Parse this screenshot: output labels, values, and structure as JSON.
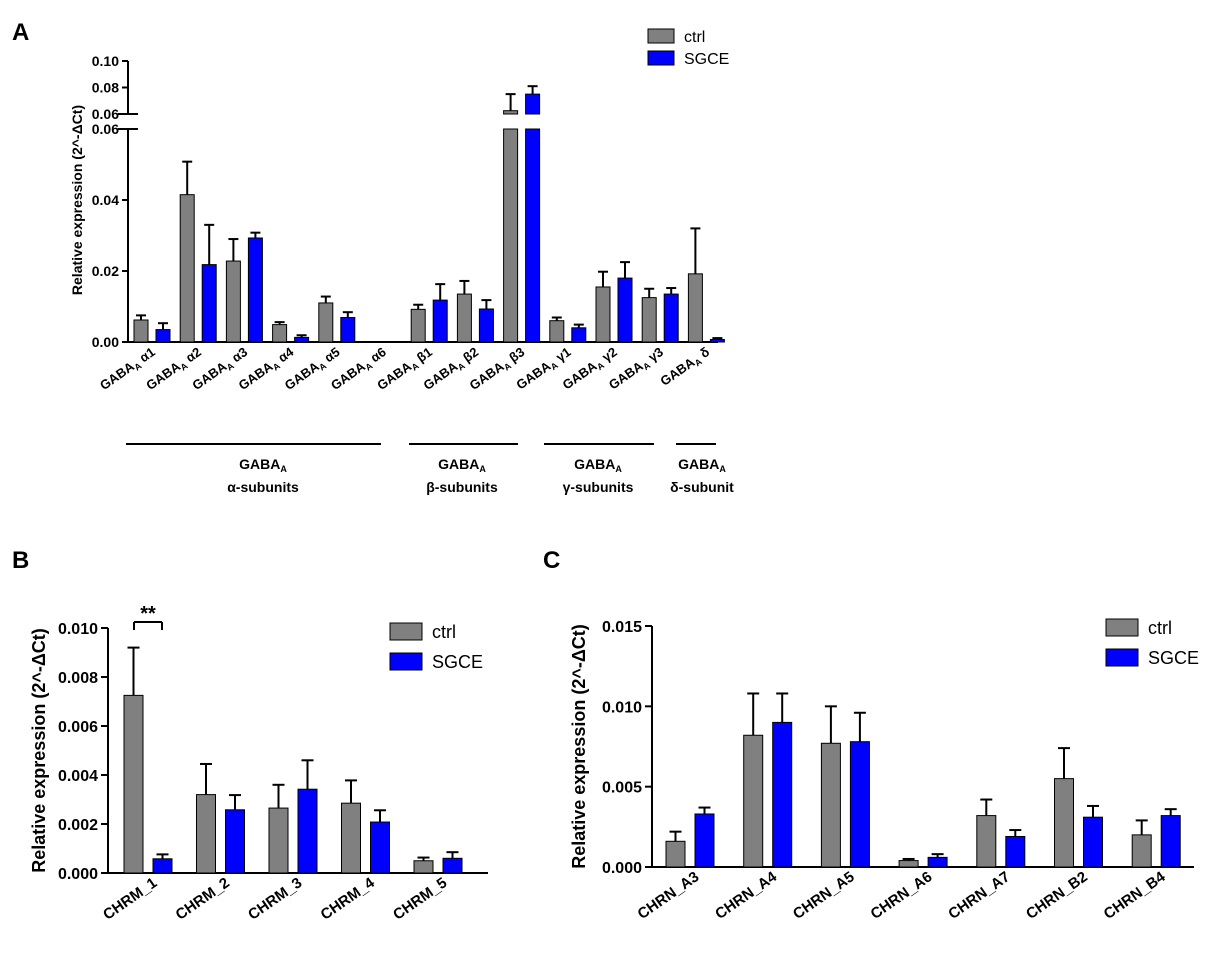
{
  "colors": {
    "ctrl": "#808080",
    "SGCE": "#0000ff"
  },
  "chart_data": [
    {
      "panel": "A",
      "type": "bar",
      "ylabel": "Relative expression (2^-ΔCt)",
      "ylim_lower": [
        0,
        0.06
      ],
      "ylim_upper": [
        0.06,
        0.1
      ],
      "yticks_lower": [
        "0.00",
        "0.02",
        "0.04",
        "0.06"
      ],
      "yticks_upper": [
        "0.06",
        "0.08",
        "0.10"
      ],
      "legend": [
        "ctrl",
        "SGCE"
      ],
      "legend_position": "top-right",
      "categories": [
        {
          "prefix": "GABA",
          "sub": "A",
          "greek": "α1"
        },
        {
          "prefix": "GABA",
          "sub": "A",
          "greek": "α2"
        },
        {
          "prefix": "GABA",
          "sub": "A",
          "greek": "α3"
        },
        {
          "prefix": "GABA",
          "sub": "A",
          "greek": "α4"
        },
        {
          "prefix": "GABA",
          "sub": "A",
          "greek": "α5"
        },
        {
          "prefix": "GABA",
          "sub": "A",
          "greek": "α6"
        },
        {
          "prefix": "GABA",
          "sub": "A",
          "greek": "β1"
        },
        {
          "prefix": "GABA",
          "sub": "A",
          "greek": "β2"
        },
        {
          "prefix": "GABA",
          "sub": "A",
          "greek": "β3"
        },
        {
          "prefix": "GABA",
          "sub": "A",
          "greek": "γ1"
        },
        {
          "prefix": "GABA",
          "sub": "A",
          "greek": "γ2"
        },
        {
          "prefix": "GABA",
          "sub": "A",
          "greek": "γ3"
        },
        {
          "prefix": "GABA",
          "sub": "A",
          "greek": "δ"
        }
      ],
      "series": [
        {
          "name": "ctrl",
          "values": [
            0.0062,
            0.0415,
            0.0228,
            0.0049,
            0.011,
            0,
            0.0092,
            0.0135,
            0.0625,
            0.006,
            0.0155,
            0.0125,
            0.0192
          ],
          "errors": [
            0.0013,
            0.0093,
            0.0062,
            0.0007,
            0.0018,
            0,
            0.0013,
            0.0037,
            0.0125,
            0.0009,
            0.0043,
            0.0025,
            0.0128
          ]
        },
        {
          "name": "SGCE",
          "values": [
            0.0035,
            0.0218,
            0.0293,
            0.0013,
            0.0069,
            0,
            0.0118,
            0.0093,
            0.075,
            0.004,
            0.018,
            0.0135,
            0.0007
          ],
          "errors": [
            0.0018,
            0.0112,
            0.0015,
            0.0006,
            0.0015,
            0,
            0.0045,
            0.0025,
            0.006,
            0.0009,
            0.0045,
            0.0017,
            0.0004
          ]
        }
      ],
      "groups": [
        {
          "prefix": "GABA",
          "sub": "A",
          "label": "α-subunits"
        },
        {
          "prefix": "GABA",
          "sub": "A",
          "label": "β-subunits"
        },
        {
          "prefix": "GABA",
          "sub": "A",
          "label": "γ-subunits"
        },
        {
          "prefix": "GABA",
          "sub": "A",
          "label": "δ-subunit"
        }
      ]
    },
    {
      "panel": "B",
      "type": "bar",
      "ylabel": "Relative expression (2^-ΔCt)",
      "ylim": [
        0,
        0.01
      ],
      "yticks": [
        "0.000",
        "0.002",
        "0.004",
        "0.006",
        "0.008",
        "0.010"
      ],
      "legend": [
        "ctrl",
        "SGCE"
      ],
      "legend_position": "top-right",
      "categories": [
        "CHRM_1",
        "CHRM_2",
        "CHRM_3",
        "CHRM_4",
        "CHRM_5"
      ],
      "series": [
        {
          "name": "ctrl",
          "values": [
            0.00725,
            0.0032,
            0.00265,
            0.00285,
            0.0005
          ],
          "errors": [
            0.00195,
            0.00125,
            0.00095,
            0.00093,
            0.00013
          ]
        },
        {
          "name": "SGCE",
          "values": [
            0.00058,
            0.00258,
            0.00342,
            0.00208,
            0.0006
          ],
          "errors": [
            0.00018,
            0.0006,
            0.00118,
            0.00048,
            0.00025
          ]
        }
      ],
      "annotation": "**"
    },
    {
      "panel": "C",
      "type": "bar",
      "ylabel": "Relative expression (2^-ΔCt)",
      "ylim": [
        0,
        0.015
      ],
      "yticks": [
        "0.000",
        "0.005",
        "0.010",
        "0.015"
      ],
      "legend": [
        "ctrl",
        "SGCE"
      ],
      "legend_position": "top-right",
      "categories": [
        "CHRN_A3",
        "CHRN_A4",
        "CHRN_A5",
        "CHRN_A6",
        "CHRN_A7",
        "CHRN_B2",
        "CHRN_B4"
      ],
      "series": [
        {
          "name": "ctrl",
          "values": [
            0.0016,
            0.0082,
            0.0077,
            0.0004,
            0.0032,
            0.0055,
            0.002
          ],
          "errors": [
            0.0006,
            0.0026,
            0.0023,
            0.0001,
            0.001,
            0.0019,
            0.0009
          ]
        },
        {
          "name": "SGCE",
          "values": [
            0.0033,
            0.009,
            0.0078,
            0.0006,
            0.0019,
            0.0031,
            0.0032
          ],
          "errors": [
            0.0004,
            0.0018,
            0.0018,
            0.0002,
            0.0004,
            0.0007,
            0.0004
          ]
        }
      ]
    }
  ]
}
